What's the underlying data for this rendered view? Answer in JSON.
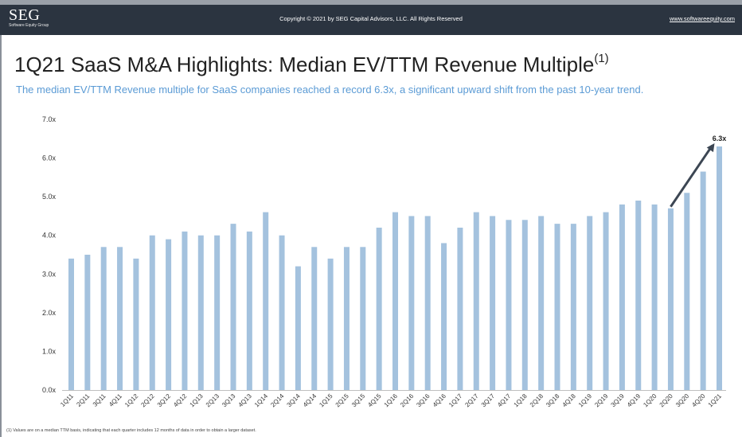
{
  "header": {
    "logo_main": "SEG",
    "logo_sub": "Software Equity Group",
    "copyright": "Copyright © 2021 by SEG Capital Advisors, LLC. All Rights Reserved",
    "website": "www.softwareequity.com"
  },
  "page": {
    "title": "1Q21 SaaS M&A Highlights: Median EV/TTM Revenue Multiple",
    "title_sup": "(1)",
    "subtitle": "The median EV/TTM Revenue multiple for SaaS companies reached a record 6.3x, a significant upward shift from the past 10-year trend.",
    "footnote": "(1)    Values are on a median TTM basis, indicating that each quarter includes 12 months of data in order to obtain a larger dataset."
  },
  "colors": {
    "bar": "#a4c2de",
    "header_bg": "#2b3440",
    "subtitle": "#5b9bd5",
    "arrow": "#3c4653"
  },
  "chart_data": {
    "type": "bar",
    "title": "Median EV/TTM Revenue Multiple",
    "categories": [
      "1Q11",
      "2Q11",
      "3Q11",
      "4Q11",
      "1Q12",
      "2Q12",
      "3Q12",
      "4Q12",
      "1Q13",
      "2Q13",
      "3Q13",
      "4Q13",
      "1Q14",
      "2Q14",
      "3Q14",
      "4Q14",
      "1Q15",
      "2Q15",
      "3Q15",
      "4Q15",
      "1Q16",
      "2Q16",
      "3Q16",
      "4Q16",
      "1Q17",
      "2Q17",
      "3Q17",
      "4Q17",
      "1Q18",
      "2Q18",
      "3Q18",
      "4Q18",
      "1Q19",
      "2Q19",
      "3Q19",
      "4Q19",
      "1Q20",
      "2Q20",
      "3Q20",
      "4Q20",
      "1Q21"
    ],
    "values": [
      3.4,
      3.5,
      3.7,
      3.7,
      3.4,
      4.0,
      3.9,
      4.1,
      4.0,
      4.0,
      4.3,
      4.1,
      4.6,
      4.0,
      3.2,
      3.7,
      3.4,
      3.7,
      3.7,
      4.2,
      4.6,
      4.5,
      4.5,
      3.8,
      4.2,
      4.6,
      4.5,
      4.4,
      4.4,
      4.5,
      4.3,
      4.3,
      4.5,
      4.6,
      4.8,
      4.9,
      4.8,
      4.7,
      5.1,
      5.65,
      6.3
    ],
    "ylim": [
      0,
      7
    ],
    "yticks": [
      "0.0x",
      "1.0x",
      "2.0x",
      "3.0x",
      "4.0x",
      "5.0x",
      "6.0x",
      "7.0x"
    ],
    "ytick_values": [
      0,
      1,
      2,
      3,
      4,
      5,
      6,
      7
    ],
    "annotation": "6.3x",
    "grid": false,
    "xlabel": "",
    "ylabel": ""
  }
}
